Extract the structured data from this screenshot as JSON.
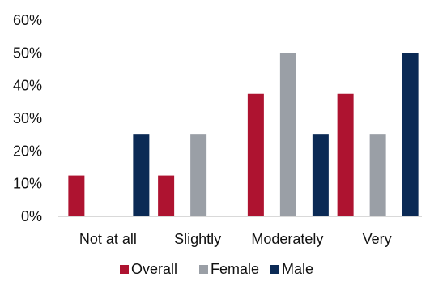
{
  "chart_data": {
    "type": "bar",
    "categories": [
      "Not at all",
      "Slightly",
      "Moderately",
      "Very"
    ],
    "series": [
      {
        "name": "Overall",
        "values": [
          12.5,
          12.5,
          37.5,
          37.5
        ],
        "color": "#AE1330"
      },
      {
        "name": "Female",
        "values": [
          null,
          25,
          50,
          25
        ],
        "color": "#9A9FA6"
      },
      {
        "name": "Male",
        "values": [
          25,
          null,
          25,
          50
        ],
        "color": "#0B2A55"
      }
    ],
    "y_ticks": [
      "0%",
      "10%",
      "20%",
      "30%",
      "40%",
      "50%",
      "60%"
    ],
    "ylim": [
      0,
      60
    ],
    "grid": false,
    "legend_position": "bottom"
  }
}
